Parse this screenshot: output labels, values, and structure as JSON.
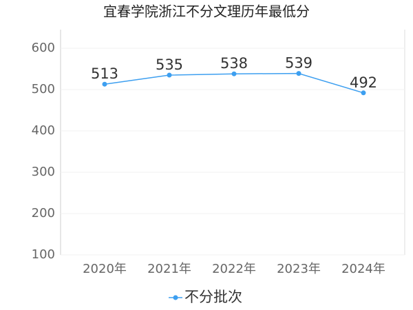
{
  "chart_data": {
    "type": "line",
    "title": "宜春学院浙江不分文理历年最低分",
    "categories": [
      "2020年",
      "2021年",
      "2022年",
      "2023年",
      "2024年"
    ],
    "series": [
      {
        "name": "不分批次",
        "color": "#3d9ff0",
        "values": [
          513,
          535,
          538,
          539,
          492
        ]
      }
    ],
    "ylim": [
      100,
      645
    ],
    "yticks": [
      100,
      200,
      300,
      400,
      500,
      600
    ],
    "grid": true
  }
}
